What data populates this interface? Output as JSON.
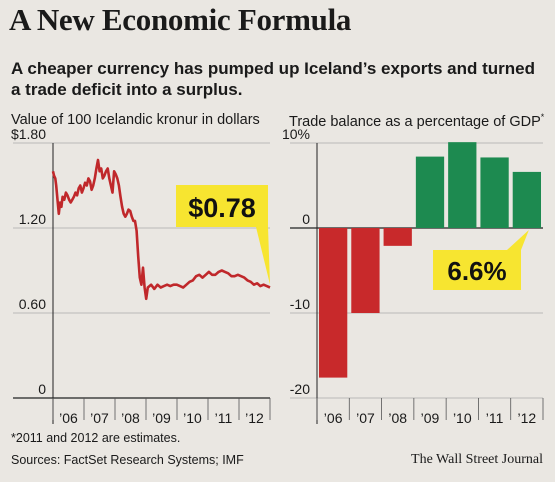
{
  "header": {
    "title": "A New Economic Formula",
    "subtitle": "A cheaper currency has pumped up Iceland’s exports and turned a trade deficit into a surplus."
  },
  "chart_data": [
    {
      "type": "line",
      "title": "Value of 100 Icelandic kronur in dollars",
      "ylim": [
        0,
        1.8
      ],
      "y_ticks": [
        "$1.80",
        "1.20",
        "0.60",
        "0"
      ],
      "x_ticks": [
        "’06",
        "’07",
        "’08",
        "’09",
        "’10",
        "’11",
        "’12"
      ],
      "x_range": [
        2006.0,
        2012.75
      ],
      "series": [
        {
          "x": [
            2006.0,
            2006.03,
            2006.07,
            2006.1,
            2006.14,
            2006.18,
            2006.22,
            2006.26,
            2006.3,
            2006.35,
            2006.4,
            2006.45,
            2006.5,
            2006.55,
            2006.6,
            2006.65,
            2006.7,
            2006.75,
            2006.8,
            2006.85,
            2006.9,
            2006.95,
            2007.0,
            2007.05,
            2007.1,
            2007.15,
            2007.2,
            2007.25,
            2007.3,
            2007.35,
            2007.4,
            2007.45,
            2007.5,
            2007.55,
            2007.6,
            2007.65,
            2007.7,
            2007.75,
            2007.8,
            2007.85,
            2007.9,
            2007.95,
            2008.0,
            2008.05,
            2008.1,
            2008.15,
            2008.2,
            2008.25,
            2008.3,
            2008.35,
            2008.4,
            2008.45,
            2008.5,
            2008.55,
            2008.6,
            2008.65,
            2008.7,
            2008.75,
            2008.8,
            2008.85,
            2008.9,
            2008.95,
            2009.05,
            2009.15,
            2009.25,
            2009.35,
            2009.45,
            2009.55,
            2009.65,
            2009.75,
            2009.85,
            2009.95,
            2010.05,
            2010.15,
            2010.25,
            2010.35,
            2010.45,
            2010.55,
            2010.65,
            2010.75,
            2010.85,
            2010.95,
            2011.05,
            2011.15,
            2011.25,
            2011.35,
            2011.45,
            2011.55,
            2011.65,
            2011.75,
            2011.85,
            2011.95,
            2012.05,
            2012.15,
            2012.25,
            2012.35,
            2012.45,
            2012.55,
            2012.65,
            2012.75
          ],
          "y": [
            1.6,
            1.57,
            1.55,
            1.5,
            1.4,
            1.3,
            1.38,
            1.35,
            1.42,
            1.4,
            1.45,
            1.43,
            1.4,
            1.38,
            1.4,
            1.42,
            1.45,
            1.43,
            1.48,
            1.5,
            1.45,
            1.48,
            1.52,
            1.5,
            1.55,
            1.53,
            1.47,
            1.5,
            1.55,
            1.62,
            1.68,
            1.6,
            1.62,
            1.55,
            1.57,
            1.6,
            1.62,
            1.55,
            1.5,
            1.45,
            1.6,
            1.58,
            1.55,
            1.5,
            1.42,
            1.35,
            1.3,
            1.28,
            1.3,
            1.33,
            1.32,
            1.28,
            1.25,
            1.25,
            1.18,
            1.0,
            0.85,
            0.8,
            0.92,
            0.78,
            0.7,
            0.78,
            0.8,
            0.77,
            0.8,
            0.78,
            0.79,
            0.8,
            0.79,
            0.8,
            0.8,
            0.79,
            0.78,
            0.8,
            0.82,
            0.83,
            0.86,
            0.87,
            0.85,
            0.87,
            0.89,
            0.87,
            0.87,
            0.89,
            0.9,
            0.89,
            0.88,
            0.86,
            0.86,
            0.87,
            0.86,
            0.85,
            0.83,
            0.82,
            0.8,
            0.81,
            0.79,
            0.8,
            0.79,
            0.78
          ]
        }
      ],
      "annotation": {
        "text": "$0.78",
        "x": 2012.75,
        "y": 0.78
      },
      "colors": {
        "line": "#c0282b",
        "callout": "#f7e530"
      }
    },
    {
      "type": "bar",
      "title": "Trade balance as a percentage of GDP",
      "title_note": "*",
      "ylim": [
        -20,
        10
      ],
      "y_ticks": [
        "10%",
        "0",
        "-10",
        "-20"
      ],
      "categories": [
        "’06",
        "’07",
        "’08",
        "’09",
        "’10",
        "’11",
        "’12"
      ],
      "values": [
        -17.6,
        -10.0,
        -2.1,
        8.4,
        10.1,
        8.3,
        6.6
      ],
      "annotation": {
        "text": "6.6%",
        "category": "’12"
      },
      "colors": {
        "negative": "#c8292b",
        "positive": "#1d8a50",
        "callout": "#f7e530"
      }
    }
  ],
  "footer": {
    "footnote": "*2011 and 2012 are estimates.",
    "sources": "Sources: FactSet Research Systems; IMF",
    "credit": "The Wall Street Journal"
  }
}
